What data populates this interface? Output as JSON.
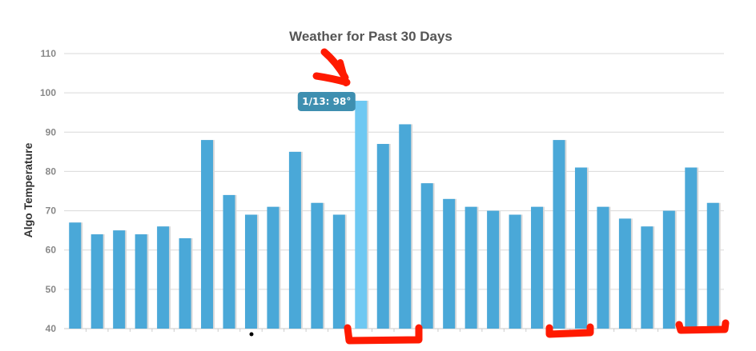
{
  "chart_data": {
    "type": "bar",
    "title": "Weather for Past 30 Days",
    "xlabel": "",
    "ylabel": "Algo Temperature",
    "ylim": [
      40,
      110
    ],
    "yticks": [
      40,
      50,
      60,
      70,
      80,
      90,
      100,
      110
    ],
    "grid": true,
    "bar_color": "#4aa8d8",
    "highlight_color": "#6ec8f2",
    "highlight_index": 13,
    "values": [
      67,
      64,
      65,
      64,
      66,
      63,
      88,
      74,
      69,
      71,
      85,
      72,
      69,
      98,
      87,
      92,
      77,
      73,
      71,
      70,
      69,
      71,
      88,
      81,
      71,
      68,
      66,
      70,
      81,
      72
    ],
    "tooltip": {
      "text": "1/13: 98°",
      "color": "#3e8fb0"
    }
  },
  "annotations": {
    "color": "#ff1a00",
    "marks": [
      "arrow-to-peak",
      "bracket-under-day-14",
      "bracket-under-day-23",
      "bracket-under-day-29"
    ]
  }
}
